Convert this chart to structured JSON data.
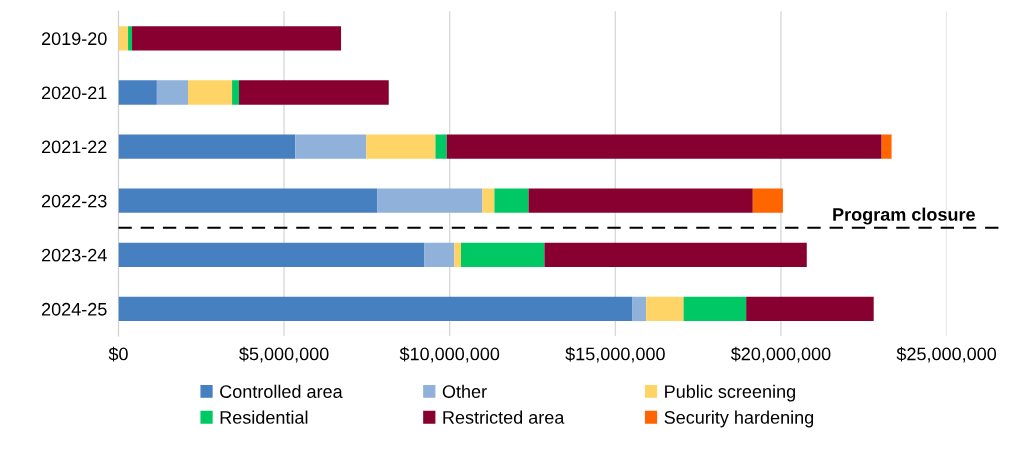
{
  "chart_data": {
    "type": "bar",
    "orientation": "horizontal",
    "stacked": true,
    "categories": [
      "2019-20",
      "2020-21",
      "2021-22",
      "2022-23",
      "2023-24",
      "2024-25"
    ],
    "series": [
      {
        "name": "Controlled area",
        "color": "#4780c1",
        "values": [
          0,
          1160000,
          5340000,
          7810000,
          9240000,
          15520000
        ]
      },
      {
        "name": "Other",
        "color": "#8fb1da",
        "values": [
          0,
          940000,
          2140000,
          3180000,
          900000,
          410000
        ]
      },
      {
        "name": "Public screening",
        "color": "#ffd466",
        "values": [
          290000,
          1330000,
          2090000,
          360000,
          200000,
          1130000
        ]
      },
      {
        "name": "Residential",
        "color": "#00c864",
        "values": [
          120000,
          210000,
          340000,
          1030000,
          2520000,
          1890000
        ]
      },
      {
        "name": "Restricted area",
        "color": "#880030",
        "values": [
          6310000,
          4520000,
          13130000,
          6770000,
          7920000,
          3850000
        ]
      },
      {
        "name": "Security hardening",
        "color": "#ff6600",
        "values": [
          0,
          0,
          300000,
          910000,
          null,
          0
        ]
      }
    ],
    "xlim": [
      0,
      25000000
    ],
    "xticks": [
      {
        "value": 0,
        "label": "$0"
      },
      {
        "value": 5000000,
        "label": "$5,000,000"
      },
      {
        "value": 10000000,
        "label": "$10,000,000"
      },
      {
        "value": 15000000,
        "label": "$15,000,000"
      },
      {
        "value": 20000000,
        "label": "$20,000,000"
      },
      {
        "value": 25000000,
        "label": "$25,000,000"
      }
    ],
    "grid": "x",
    "legend": "bottom",
    "ref_lines": [
      {
        "axis": "y",
        "value": "2022-23",
        "label": "Program closure",
        "color": "#000000",
        "line_style": "dashed"
      }
    ]
  }
}
